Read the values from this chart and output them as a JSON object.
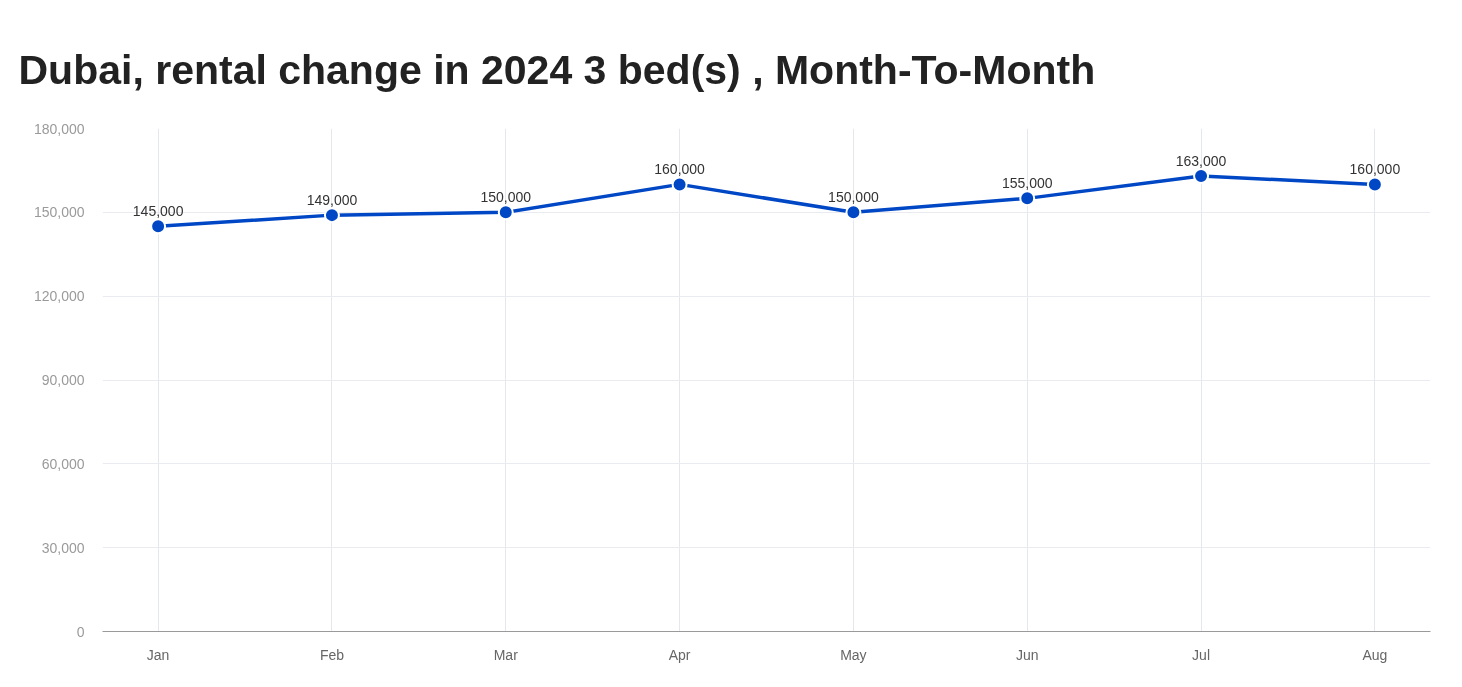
{
  "chart_data": {
    "type": "line",
    "title": "Dubai, rental change in 2024 3 bed(s) , Month-To-Month",
    "categories": [
      "Jan",
      "Feb",
      "Mar",
      "Apr",
      "May",
      "Jun",
      "Jul",
      "Aug"
    ],
    "series": [
      {
        "color": "#0047c6",
        "values": [
          145000,
          149000,
          150000,
          160000,
          150000,
          155000,
          163000,
          160000
        ],
        "value_labels": [
          "145,000",
          "149,000",
          "150,000",
          "160,000",
          "150,000",
          "155,000",
          "163,000",
          "160,000"
        ]
      }
    ],
    "ylim": [
      0,
      180000
    ],
    "yticks": [
      0,
      {
        "value": 30000,
        "label": "30,000"
      },
      {
        "value": 60000,
        "label": "60,000"
      },
      {
        "value": 90000,
        "label": "90,000"
      },
      {
        "value": 120000,
        "label": "120,000"
      },
      {
        "value": 150000,
        "label": "150,000"
      },
      {
        "value": 180000,
        "label": "180,000"
      }
    ],
    "grid": true,
    "marker": "circle",
    "line_style": "solid"
  }
}
